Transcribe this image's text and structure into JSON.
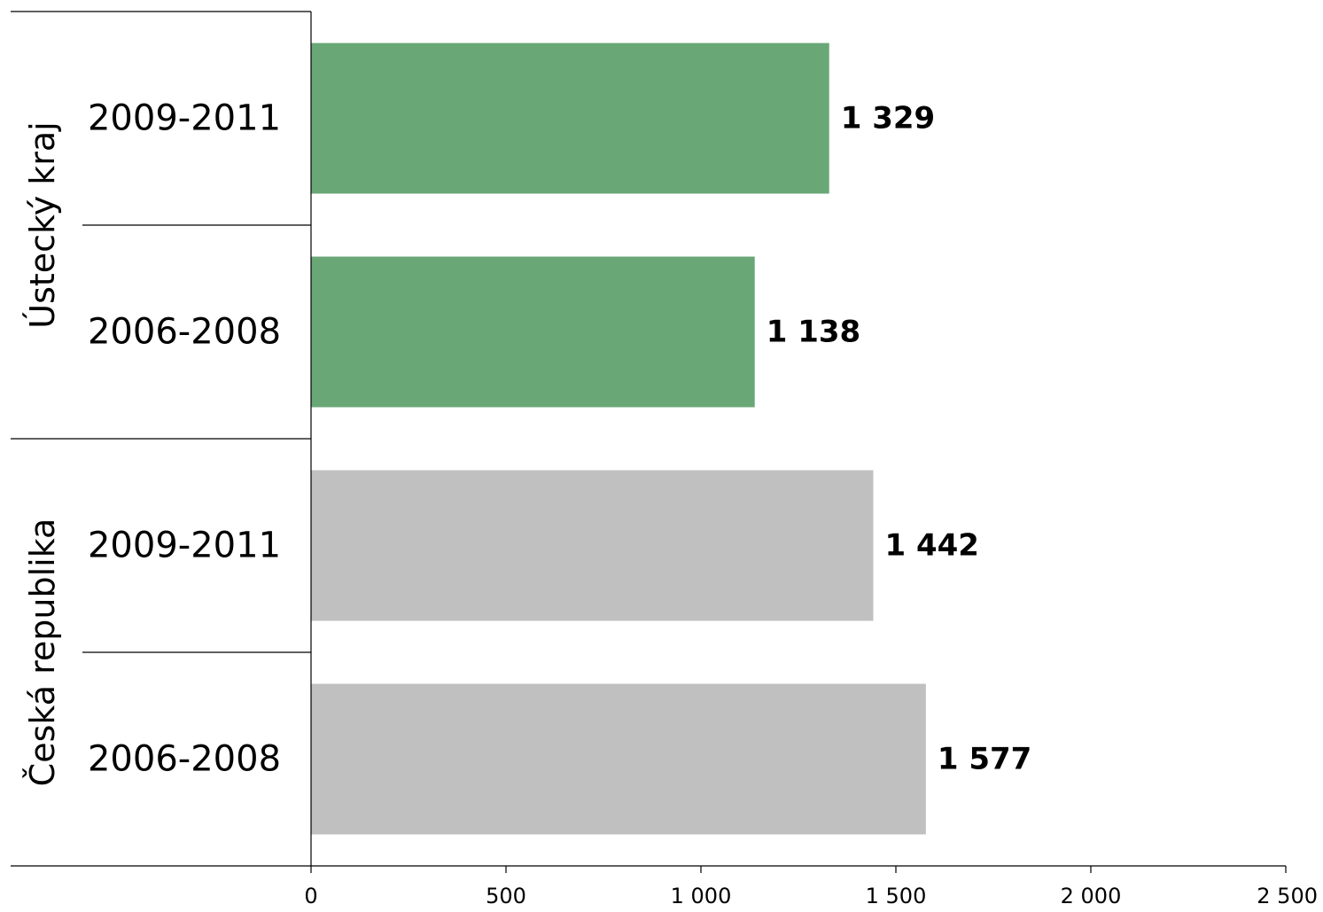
{
  "chart_data": {
    "type": "bar",
    "orientation": "horizontal",
    "title": "",
    "xlabel": "",
    "ylabel": "",
    "xlim": [
      0,
      2500
    ],
    "x_ticks": [
      {
        "value": 0,
        "label": "0"
      },
      {
        "value": 500,
        "label": "500"
      },
      {
        "value": 1000,
        "label": "1 000"
      },
      {
        "value": 1500,
        "label": "1 500"
      },
      {
        "value": 2000,
        "label": "2 000"
      },
      {
        "value": 2500,
        "label": "2 500"
      }
    ],
    "grid": false,
    "groups": [
      {
        "name": "Ústecký kraj",
        "color": "#69a777",
        "bars": [
          {
            "category": "2009-2011",
            "value": 1329,
            "value_label": "1 329"
          },
          {
            "category": "2006-2008",
            "value": 1138,
            "value_label": "1 138"
          }
        ]
      },
      {
        "name": "Česká republika",
        "color": "#c0c0c0",
        "bars": [
          {
            "category": "2009-2011",
            "value": 1442,
            "value_label": "1 442"
          },
          {
            "category": "2006-2008",
            "value": 1577,
            "value_label": "1 577"
          }
        ]
      }
    ]
  }
}
